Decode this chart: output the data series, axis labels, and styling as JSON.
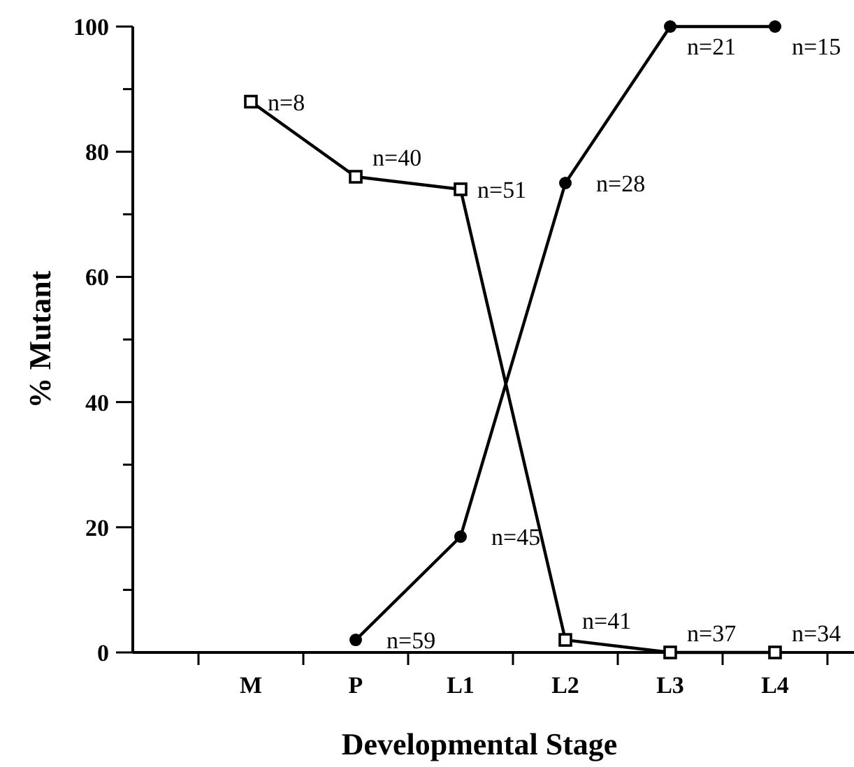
{
  "chart_data": {
    "type": "line",
    "xlabel": "Developmental Stage",
    "ylabel": "% Mutant",
    "categories": [
      "M",
      "P",
      "L1",
      "L2",
      "L3",
      "L4"
    ],
    "ylim": [
      0,
      100
    ],
    "yticks": [
      0,
      {
        "value": 10,
        "label": null
      },
      20,
      {
        "value": 30,
        "label": null
      },
      40,
      {
        "value": 50,
        "label": null
      },
      60,
      {
        "value": 70,
        "label": null
      },
      80,
      {
        "value": 90,
        "label": null
      },
      100
    ],
    "grid": false,
    "line_style": "solid",
    "series": [
      {
        "color": "#000000",
        "marker": "square",
        "values": [
          88,
          76,
          74,
          2,
          0,
          0
        ]
      },
      {
        "color": "#000000",
        "marker": "circle",
        "values": [
          null,
          2,
          18.5,
          75,
          100,
          100
        ]
      }
    ],
    "annotations": [
      {
        "text": "n=8",
        "x": "M",
        "y": 88
      },
      {
        "text": "n=40",
        "x": "P",
        "y": 76
      },
      {
        "text": "n=51",
        "x": "L1",
        "y": 74
      },
      {
        "text": "n=41",
        "x": "L2",
        "y": 2
      },
      {
        "text": "n=37",
        "x": "L3",
        "y": 0
      },
      {
        "text": "n=34",
        "x": "L4",
        "y": 0
      },
      {
        "text": "n=59",
        "x": "P",
        "y": 2
      },
      {
        "text": "n=45",
        "x": "L1",
        "y": 18.5
      },
      {
        "text": "n=28",
        "x": "L2",
        "y": 75
      },
      {
        "text": "n=21",
        "x": "L3",
        "y": 100
      },
      {
        "text": "n=15",
        "x": "L4",
        "y": 100
      }
    ]
  }
}
